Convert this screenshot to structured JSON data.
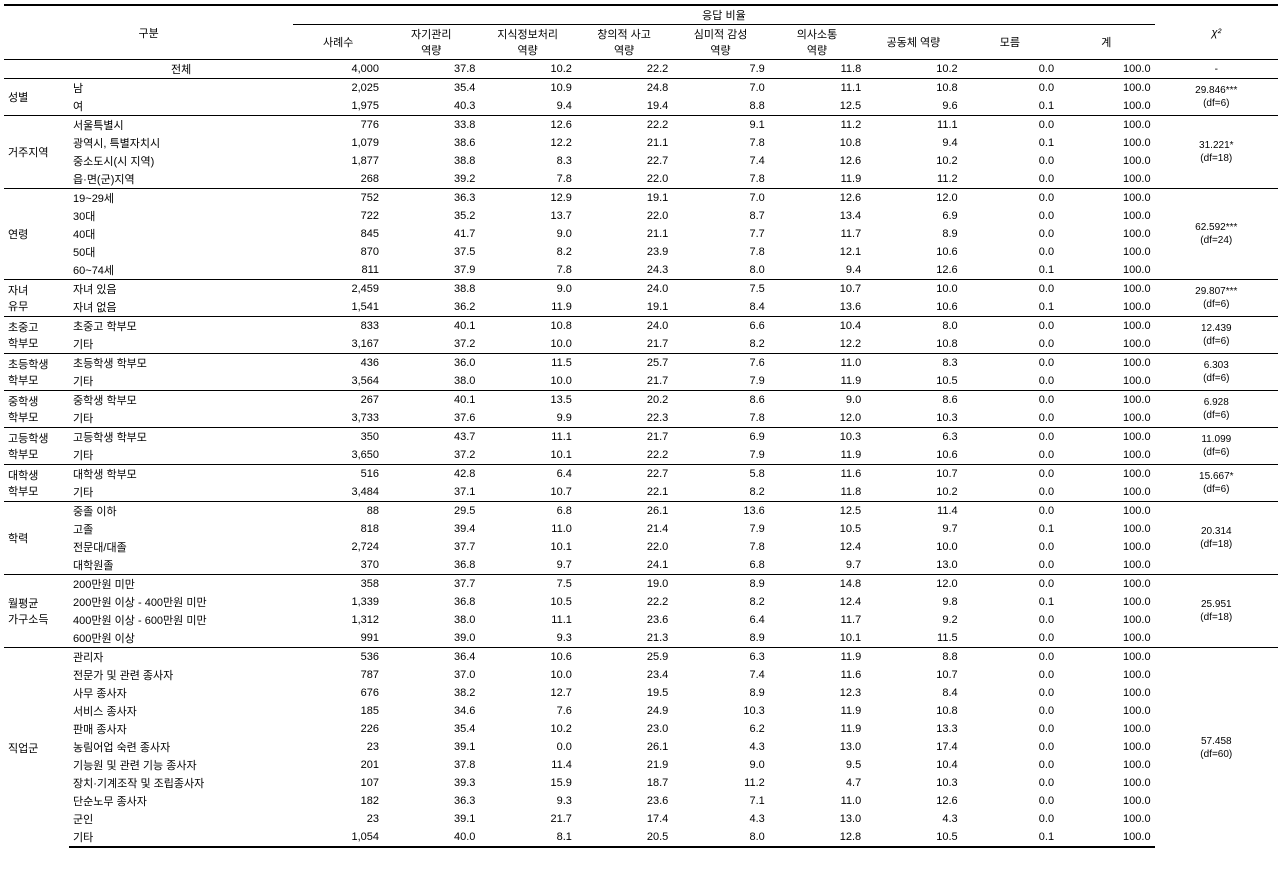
{
  "headers": {
    "category": "구분",
    "responseRate": "응답 비율",
    "chi2": "χ²",
    "cols": [
      "사례수",
      "자기관리\n역량",
      "지식정보처리\n역량",
      "창의적 사고\n역량",
      "심미적 감성\n역량",
      "의사소통\n역량",
      "공동체 역량",
      "모름",
      "계"
    ]
  },
  "totalRow": {
    "label": "전체",
    "vals": [
      "4,000",
      "37.8",
      "10.2",
      "22.2",
      "7.9",
      "11.8",
      "10.2",
      "0.0",
      "100.0"
    ],
    "chi": "-"
  },
  "groups": [
    {
      "cat": "성별",
      "chi": "29.846***\n(df=6)",
      "rows": [
        {
          "label": "남",
          "vals": [
            "2,025",
            "35.4",
            "10.9",
            "24.8",
            "7.0",
            "11.1",
            "10.8",
            "0.0",
            "100.0"
          ]
        },
        {
          "label": "여",
          "vals": [
            "1,975",
            "40.3",
            "9.4",
            "19.4",
            "8.8",
            "12.5",
            "9.6",
            "0.1",
            "100.0"
          ]
        }
      ]
    },
    {
      "cat": "거주지역",
      "chi": "31.221*\n(df=18)",
      "rows": [
        {
          "label": "서울특별시",
          "vals": [
            "776",
            "33.8",
            "12.6",
            "22.2",
            "9.1",
            "11.2",
            "11.1",
            "0.0",
            "100.0"
          ]
        },
        {
          "label": "광역시, 특별자치시",
          "vals": [
            "1,079",
            "38.6",
            "12.2",
            "21.1",
            "7.8",
            "10.8",
            "9.4",
            "0.1",
            "100.0"
          ]
        },
        {
          "label": "중소도시(시 지역)",
          "vals": [
            "1,877",
            "38.8",
            "8.3",
            "22.7",
            "7.4",
            "12.6",
            "10.2",
            "0.0",
            "100.0"
          ]
        },
        {
          "label": "읍·면(군)지역",
          "vals": [
            "268",
            "39.2",
            "7.8",
            "22.0",
            "7.8",
            "11.9",
            "11.2",
            "0.0",
            "100.0"
          ]
        }
      ]
    },
    {
      "cat": "연령",
      "chi": "62.592***\n(df=24)",
      "rows": [
        {
          "label": "19~29세",
          "vals": [
            "752",
            "36.3",
            "12.9",
            "19.1",
            "7.0",
            "12.6",
            "12.0",
            "0.0",
            "100.0"
          ]
        },
        {
          "label": "30대",
          "vals": [
            "722",
            "35.2",
            "13.7",
            "22.0",
            "8.7",
            "13.4",
            "6.9",
            "0.0",
            "100.0"
          ]
        },
        {
          "label": "40대",
          "vals": [
            "845",
            "41.7",
            "9.0",
            "21.1",
            "7.7",
            "11.7",
            "8.9",
            "0.0",
            "100.0"
          ]
        },
        {
          "label": "50대",
          "vals": [
            "870",
            "37.5",
            "8.2",
            "23.9",
            "7.8",
            "12.1",
            "10.6",
            "0.0",
            "100.0"
          ]
        },
        {
          "label": "60~74세",
          "vals": [
            "811",
            "37.9",
            "7.8",
            "24.3",
            "8.0",
            "9.4",
            "12.6",
            "0.1",
            "100.0"
          ]
        }
      ]
    },
    {
      "cat": "자녀\n유무",
      "chi": "29.807***\n(df=6)",
      "rows": [
        {
          "label": "자녀 있음",
          "vals": [
            "2,459",
            "38.8",
            "9.0",
            "24.0",
            "7.5",
            "10.7",
            "10.0",
            "0.0",
            "100.0"
          ]
        },
        {
          "label": "자녀 없음",
          "vals": [
            "1,541",
            "36.2",
            "11.9",
            "19.1",
            "8.4",
            "13.6",
            "10.6",
            "0.1",
            "100.0"
          ]
        }
      ]
    },
    {
      "cat": "초중고\n학부모",
      "chi": "12.439\n(df=6)",
      "rows": [
        {
          "label": "초중고 학부모",
          "vals": [
            "833",
            "40.1",
            "10.8",
            "24.0",
            "6.6",
            "10.4",
            "8.0",
            "0.0",
            "100.0"
          ]
        },
        {
          "label": "기타",
          "vals": [
            "3,167",
            "37.2",
            "10.0",
            "21.7",
            "8.2",
            "12.2",
            "10.8",
            "0.0",
            "100.0"
          ]
        }
      ]
    },
    {
      "cat": "초등학생\n학부모",
      "chi": "6.303\n(df=6)",
      "rows": [
        {
          "label": "초등학생 학부모",
          "vals": [
            "436",
            "36.0",
            "11.5",
            "25.7",
            "7.6",
            "11.0",
            "8.3",
            "0.0",
            "100.0"
          ]
        },
        {
          "label": "기타",
          "vals": [
            "3,564",
            "38.0",
            "10.0",
            "21.7",
            "7.9",
            "11.9",
            "10.5",
            "0.0",
            "100.0"
          ]
        }
      ]
    },
    {
      "cat": "중학생\n학부모",
      "chi": "6.928\n(df=6)",
      "rows": [
        {
          "label": "중학생 학부모",
          "vals": [
            "267",
            "40.1",
            "13.5",
            "20.2",
            "8.6",
            "9.0",
            "8.6",
            "0.0",
            "100.0"
          ]
        },
        {
          "label": "기타",
          "vals": [
            "3,733",
            "37.6",
            "9.9",
            "22.3",
            "7.8",
            "12.0",
            "10.3",
            "0.0",
            "100.0"
          ]
        }
      ]
    },
    {
      "cat": "고등학생\n학부모",
      "chi": "11.099\n(df=6)",
      "rows": [
        {
          "label": "고등학생 학부모",
          "vals": [
            "350",
            "43.7",
            "11.1",
            "21.7",
            "6.9",
            "10.3",
            "6.3",
            "0.0",
            "100.0"
          ]
        },
        {
          "label": "기타",
          "vals": [
            "3,650",
            "37.2",
            "10.1",
            "22.2",
            "7.9",
            "11.9",
            "10.6",
            "0.0",
            "100.0"
          ]
        }
      ]
    },
    {
      "cat": "대학생\n학부모",
      "chi": "15.667*\n(df=6)",
      "rows": [
        {
          "label": "대학생 학부모",
          "vals": [
            "516",
            "42.8",
            "6.4",
            "22.7",
            "5.8",
            "11.6",
            "10.7",
            "0.0",
            "100.0"
          ]
        },
        {
          "label": "기타",
          "vals": [
            "3,484",
            "37.1",
            "10.7",
            "22.1",
            "8.2",
            "11.8",
            "10.2",
            "0.0",
            "100.0"
          ]
        }
      ]
    },
    {
      "cat": "학력",
      "chi": "20.314\n(df=18)",
      "rows": [
        {
          "label": "중졸 이하",
          "vals": [
            "88",
            "29.5",
            "6.8",
            "26.1",
            "13.6",
            "12.5",
            "11.4",
            "0.0",
            "100.0"
          ]
        },
        {
          "label": "고졸",
          "vals": [
            "818",
            "39.4",
            "11.0",
            "21.4",
            "7.9",
            "10.5",
            "9.7",
            "0.1",
            "100.0"
          ]
        },
        {
          "label": "전문대/대졸",
          "vals": [
            "2,724",
            "37.7",
            "10.1",
            "22.0",
            "7.8",
            "12.4",
            "10.0",
            "0.0",
            "100.0"
          ]
        },
        {
          "label": "대학원졸",
          "vals": [
            "370",
            "36.8",
            "9.7",
            "24.1",
            "6.8",
            "9.7",
            "13.0",
            "0.0",
            "100.0"
          ]
        }
      ]
    },
    {
      "cat": "월평균\n가구소득",
      "chi": "25.951\n(df=18)",
      "rows": [
        {
          "label": "200만원 미만",
          "vals": [
            "358",
            "37.7",
            "7.5",
            "19.0",
            "8.9",
            "14.8",
            "12.0",
            "0.0",
            "100.0"
          ]
        },
        {
          "label": "200만원 이상 - 400만원 미만",
          "vals": [
            "1,339",
            "36.8",
            "10.5",
            "22.2",
            "8.2",
            "12.4",
            "9.8",
            "0.1",
            "100.0"
          ]
        },
        {
          "label": "400만원 이상 - 600만원 미만",
          "vals": [
            "1,312",
            "38.0",
            "11.1",
            "23.6",
            "6.4",
            "11.7",
            "9.2",
            "0.0",
            "100.0"
          ]
        },
        {
          "label": "600만원 이상",
          "vals": [
            "991",
            "39.0",
            "9.3",
            "21.3",
            "8.9",
            "10.1",
            "11.5",
            "0.0",
            "100.0"
          ]
        }
      ]
    },
    {
      "cat": "직업군",
      "chi": "57.458\n(df=60)",
      "rows": [
        {
          "label": "관리자",
          "vals": [
            "536",
            "36.4",
            "10.6",
            "25.9",
            "6.3",
            "11.9",
            "8.8",
            "0.0",
            "100.0"
          ]
        },
        {
          "label": "전문가 및 관련  종사자",
          "vals": [
            "787",
            "37.0",
            "10.0",
            "23.4",
            "7.4",
            "11.6",
            "10.7",
            "0.0",
            "100.0"
          ]
        },
        {
          "label": "사무 종사자",
          "vals": [
            "676",
            "38.2",
            "12.7",
            "19.5",
            "8.9",
            "12.3",
            "8.4",
            "0.0",
            "100.0"
          ]
        },
        {
          "label": "서비스 종사자",
          "vals": [
            "185",
            "34.6",
            "7.6",
            "24.9",
            "10.3",
            "11.9",
            "10.8",
            "0.0",
            "100.0"
          ]
        },
        {
          "label": "판매 종사자",
          "vals": [
            "226",
            "35.4",
            "10.2",
            "23.0",
            "6.2",
            "11.9",
            "13.3",
            "0.0",
            "100.0"
          ]
        },
        {
          "label": "농림어업 숙련 종사자",
          "vals": [
            "23",
            "39.1",
            "0.0",
            "26.1",
            "4.3",
            "13.0",
            "17.4",
            "0.0",
            "100.0"
          ]
        },
        {
          "label": "기능원 및 관련 기능 종사자",
          "vals": [
            "201",
            "37.8",
            "11.4",
            "21.9",
            "9.0",
            "9.5",
            "10.4",
            "0.0",
            "100.0"
          ]
        },
        {
          "label": "장치·기계조작 및 조립종사자",
          "vals": [
            "107",
            "39.3",
            "15.9",
            "18.7",
            "11.2",
            "4.7",
            "10.3",
            "0.0",
            "100.0"
          ]
        },
        {
          "label": "단순노무 종사자",
          "vals": [
            "182",
            "36.3",
            "9.3",
            "23.6",
            "7.1",
            "11.0",
            "12.6",
            "0.0",
            "100.0"
          ]
        },
        {
          "label": "군인",
          "vals": [
            "23",
            "39.1",
            "21.7",
            "17.4",
            "4.3",
            "13.0",
            "4.3",
            "0.0",
            "100.0"
          ]
        },
        {
          "label": "기타",
          "vals": [
            "1,054",
            "40.0",
            "8.1",
            "20.5",
            "8.0",
            "12.8",
            "10.5",
            "0.1",
            "100.0"
          ]
        }
      ]
    }
  ]
}
